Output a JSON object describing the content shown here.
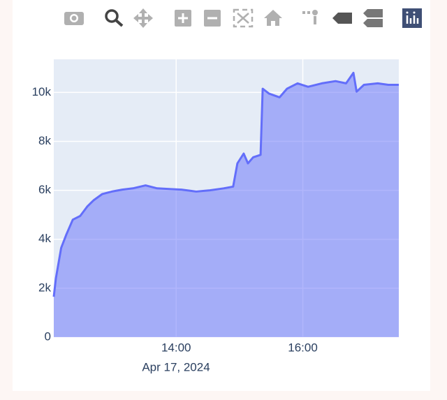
{
  "chart_data": {
    "type": "area",
    "x_axis_date_label": "Apr 17, 2024",
    "x": [
      "2024-04-17 12:04",
      "2024-04-17 12:06",
      "2024-04-17 12:11",
      "2024-04-17 12:16",
      "2024-04-17 12:22",
      "2024-04-17 12:29",
      "2024-04-17 12:36",
      "2024-04-17 12:42",
      "2024-04-17 12:50",
      "2024-04-17 12:59",
      "2024-04-17 13:09",
      "2024-04-17 13:19",
      "2024-04-17 13:31",
      "2024-04-17 13:42",
      "2024-04-17 13:55",
      "2024-04-17 14:05",
      "2024-04-17 14:19",
      "2024-04-17 14:32",
      "2024-04-17 14:45",
      "2024-04-17 14:54",
      "2024-04-17 14:58",
      "2024-04-17 15:04",
      "2024-04-17 15:08",
      "2024-04-17 15:13",
      "2024-04-17 15:20",
      "2024-04-17 15:22",
      "2024-04-17 15:28",
      "2024-04-17 15:38",
      "2024-04-17 15:45",
      "2024-04-17 15:55",
      "2024-04-17 16:05",
      "2024-04-17 16:18",
      "2024-04-17 16:31",
      "2024-04-17 16:41",
      "2024-04-17 16:48",
      "2024-04-17 16:51",
      "2024-04-17 16:58",
      "2024-04-17 17:11",
      "2024-04-17 17:21",
      "2024-04-17 17:31"
    ],
    "series": [
      {
        "color": "#636efa",
        "values": [
          1650,
          2400,
          3650,
          4200,
          4800,
          4950,
          5350,
          5600,
          5850,
          5950,
          6030,
          6080,
          6200,
          6080,
          6050,
          6030,
          5950,
          6000,
          6080,
          6150,
          7100,
          7500,
          7100,
          7350,
          7450,
          10150,
          9950,
          9800,
          10150,
          10370,
          10230,
          10370,
          10460,
          10370,
          10800,
          10030,
          10310,
          10370,
          10310,
          10310
        ]
      }
    ],
    "xlim": [
      "2024-04-17 12:04",
      "2024-04-17 17:31"
    ],
    "xticks": [
      {
        "value": "2024-04-17 14:00",
        "label": "14:00"
      },
      {
        "value": "2024-04-17 16:00",
        "label": "16:00"
      }
    ],
    "ylim": [
      0,
      11350
    ],
    "yticks": [
      0,
      {
        "value": 2000,
        "label": "2k"
      },
      {
        "value": 4000,
        "label": "4k"
      },
      {
        "value": 6000,
        "label": "6k"
      },
      {
        "value": 8000,
        "label": "8k"
      },
      {
        "value": 10000,
        "label": "10k"
      }
    ],
    "grid": true
  }
}
